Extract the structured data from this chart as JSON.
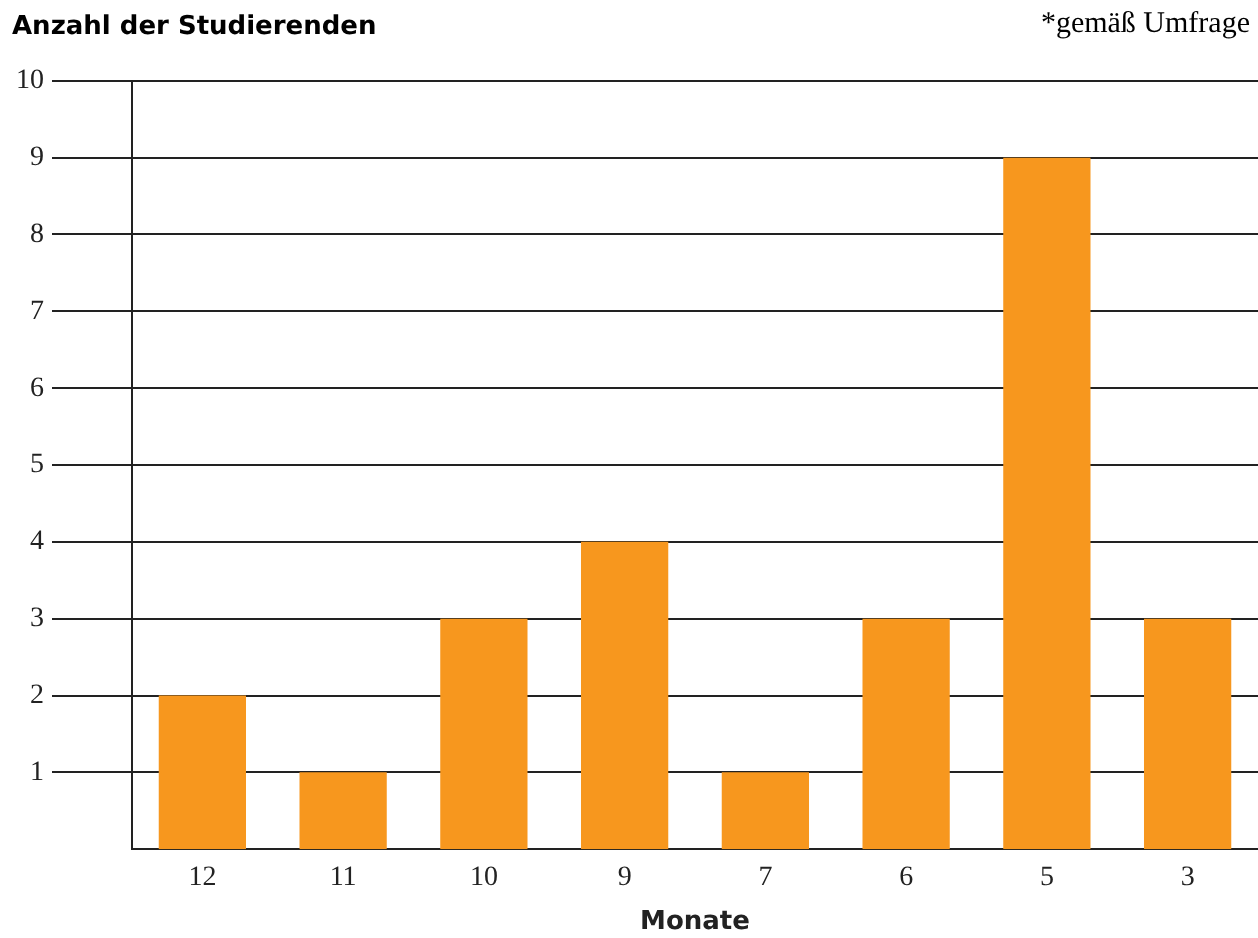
{
  "chart_data": {
    "type": "bar",
    "title": "Anzahl der Studierenden",
    "annotations": [
      "*gemäß Umfrage"
    ],
    "xlabel": "Monate",
    "categories": [
      "12",
      "11",
      "10",
      "9",
      "7",
      "6",
      "5",
      "3"
    ],
    "values": [
      2,
      1,
      3,
      4,
      1,
      3,
      9,
      3
    ],
    "color": "#f7971e",
    "ylim": [
      0,
      10
    ],
    "yticks": [
      1,
      2,
      3,
      4,
      5,
      6,
      7,
      8,
      9,
      10
    ],
    "grid": "y",
    "legend": false
  }
}
